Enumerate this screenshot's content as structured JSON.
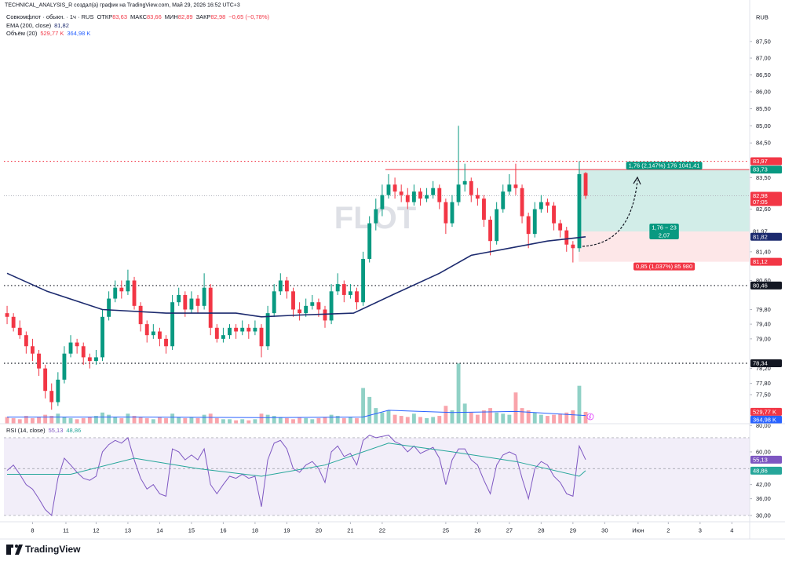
{
  "header": "TECHNICAL_ANALYSIS_R создал(а) график на TradingView.com, Май 29, 2026 16:52 UTC+3",
  "logo": "TradingView",
  "chart_data": {
    "type": "candlestick",
    "title": "Совкомфлот · обыкн. · 1ч · RUS",
    "ohlc_legend": [
      {
        "name": "ОТКР",
        "value": "83,63"
      },
      {
        "name": "МАКС",
        "value": "83,66"
      },
      {
        "name": "МИН",
        "value": "82,89"
      },
      {
        "name": "ЗАКР",
        "value": "82,98"
      }
    ],
    "change": "−0,65 (−0,78%)",
    "currency": "RUB",
    "watermark": "FLOT",
    "log_scale": true,
    "up_color": "#089981",
    "down_color": "#f23645",
    "x": [
      0,
      1,
      2,
      3,
      4,
      5,
      6,
      7,
      8,
      9,
      10,
      11,
      12,
      13,
      14,
      15,
      16,
      17,
      18,
      19,
      20,
      21,
      22,
      23,
      24,
      25,
      26,
      27,
      28,
      29,
      30,
      31,
      32,
      33,
      34,
      35,
      36,
      37,
      38,
      39,
      40,
      41,
      42,
      43,
      44,
      45,
      46,
      47,
      48,
      49,
      50,
      51,
      52,
      53,
      54,
      55,
      56,
      57,
      58,
      59,
      60,
      61,
      62,
      63,
      64,
      65,
      66,
      67,
      68,
      69,
      70,
      71,
      72,
      73,
      74,
      75,
      76,
      77,
      78,
      79,
      80,
      81,
      82,
      83,
      84,
      85,
      86,
      87,
      88,
      89,
      90,
      91
    ],
    "candles": [
      [
        79.7,
        79.9,
        79.4,
        79.6
      ],
      [
        79.6,
        79.7,
        79.2,
        79.3
      ],
      [
        79.3,
        79.5,
        79.0,
        79.1
      ],
      [
        79.1,
        79.2,
        78.6,
        78.8
      ],
      [
        78.8,
        79.0,
        78.4,
        78.6
      ],
      [
        78.6,
        78.7,
        78.0,
        78.2
      ],
      [
        78.2,
        78.3,
        77.4,
        77.6
      ],
      [
        77.6,
        77.8,
        77.1,
        77.3
      ],
      [
        77.3,
        78.1,
        77.2,
        77.9
      ],
      [
        77.9,
        78.8,
        77.8,
        78.6
      ],
      [
        78.6,
        79.1,
        78.5,
        78.9
      ],
      [
        78.9,
        79.0,
        78.6,
        78.8
      ],
      [
        78.8,
        78.9,
        78.3,
        78.5
      ],
      [
        78.5,
        78.6,
        78.2,
        78.4
      ],
      [
        78.4,
        78.7,
        78.3,
        78.5
      ],
      [
        78.5,
        79.8,
        78.4,
        79.6
      ],
      [
        79.6,
        80.3,
        79.5,
        80.1
      ],
      [
        80.1,
        80.6,
        80.0,
        80.4
      ],
      [
        80.4,
        80.6,
        80.1,
        80.3
      ],
      [
        80.3,
        80.9,
        80.2,
        80.6
      ],
      [
        80.6,
        80.7,
        79.8,
        79.9
      ],
      [
        79.9,
        80.0,
        79.2,
        79.4
      ],
      [
        79.4,
        79.5,
        78.9,
        79.1
      ],
      [
        79.1,
        79.4,
        79.0,
        79.2
      ],
      [
        79.2,
        79.3,
        78.8,
        79.0
      ],
      [
        79.0,
        79.1,
        78.6,
        78.8
      ],
      [
        78.8,
        80.2,
        78.7,
        80.0
      ],
      [
        80.0,
        80.4,
        79.9,
        80.2
      ],
      [
        80.2,
        80.3,
        79.6,
        79.8
      ],
      [
        79.8,
        80.3,
        79.7,
        80.1
      ],
      [
        80.1,
        80.2,
        79.7,
        79.9
      ],
      [
        79.9,
        80.8,
        79.8,
        80.4
      ],
      [
        80.4,
        80.5,
        79.1,
        79.3
      ],
      [
        79.3,
        79.4,
        78.9,
        79.0
      ],
      [
        79.0,
        79.3,
        78.9,
        79.1
      ],
      [
        79.1,
        79.4,
        79.0,
        79.3
      ],
      [
        79.3,
        79.4,
        79.0,
        79.2
      ],
      [
        79.2,
        79.5,
        79.1,
        79.3
      ],
      [
        79.3,
        79.4,
        79.0,
        79.2
      ],
      [
        79.2,
        79.5,
        79.1,
        79.3
      ],
      [
        79.3,
        79.4,
        78.5,
        78.8
      ],
      [
        78.8,
        79.9,
        78.7,
        79.7
      ],
      [
        79.7,
        80.5,
        79.6,
        80.3
      ],
      [
        80.3,
        80.8,
        80.2,
        80.6
      ],
      [
        80.6,
        80.7,
        80.1,
        80.3
      ],
      [
        80.3,
        80.4,
        79.6,
        79.8
      ],
      [
        79.8,
        80.0,
        79.5,
        79.7
      ],
      [
        79.7,
        80.1,
        79.6,
        79.9
      ],
      [
        79.9,
        80.2,
        79.8,
        80.0
      ],
      [
        80.0,
        80.1,
        79.6,
        79.8
      ],
      [
        79.8,
        79.9,
        79.3,
        79.5
      ],
      [
        79.5,
        80.5,
        79.4,
        80.3
      ],
      [
        80.3,
        80.8,
        80.2,
        80.5
      ],
      [
        80.5,
        80.6,
        80.0,
        80.2
      ],
      [
        80.2,
        80.5,
        80.1,
        80.3
      ],
      [
        80.3,
        80.4,
        79.8,
        80.0
      ],
      [
        80.0,
        81.4,
        79.9,
        81.2
      ],
      [
        81.2,
        82.4,
        81.1,
        82.2
      ],
      [
        82.2,
        82.9,
        82.0,
        82.6
      ],
      [
        82.6,
        83.3,
        82.4,
        83.0
      ],
      [
        83.0,
        83.6,
        82.9,
        83.3
      ],
      [
        83.3,
        83.5,
        82.9,
        83.1
      ],
      [
        83.1,
        83.3,
        82.8,
        83.0
      ],
      [
        83.0,
        83.2,
        82.6,
        82.8
      ],
      [
        82.8,
        83.3,
        82.7,
        83.1
      ],
      [
        83.1,
        83.2,
        82.7,
        82.9
      ],
      [
        82.9,
        83.2,
        82.8,
        83.0
      ],
      [
        83.0,
        83.4,
        82.9,
        83.2
      ],
      [
        83.2,
        83.3,
        82.6,
        82.8
      ],
      [
        82.8,
        82.9,
        81.9,
        82.2
      ],
      [
        82.2,
        83.0,
        82.1,
        82.8
      ],
      [
        82.8,
        85.0,
        82.7,
        83.3
      ],
      [
        83.3,
        83.9,
        83.1,
        83.4
      ],
      [
        83.4,
        83.5,
        82.8,
        83.0
      ],
      [
        83.0,
        83.2,
        82.7,
        82.9
      ],
      [
        82.9,
        83.0,
        82.1,
        82.3
      ],
      [
        82.3,
        82.4,
        81.3,
        81.7
      ],
      [
        81.7,
        82.8,
        81.6,
        82.6
      ],
      [
        82.6,
        83.3,
        82.5,
        83.1
      ],
      [
        83.1,
        83.6,
        83.0,
        83.3
      ],
      [
        83.3,
        83.9,
        83.0,
        83.2
      ],
      [
        83.2,
        83.3,
        82.2,
        82.4
      ],
      [
        82.4,
        82.5,
        81.5,
        81.9
      ],
      [
        81.9,
        82.8,
        81.8,
        82.6
      ],
      [
        82.6,
        83.0,
        82.5,
        82.8
      ],
      [
        82.8,
        82.9,
        82.5,
        82.7
      ],
      [
        82.7,
        82.8,
        82.0,
        82.2
      ],
      [
        82.2,
        82.3,
        81.8,
        82.0
      ],
      [
        82.0,
        82.1,
        81.4,
        81.6
      ],
      [
        81.6,
        81.7,
        81.1,
        81.5
      ],
      [
        81.5,
        83.97,
        81.4,
        83.6
      ],
      [
        83.63,
        83.66,
        82.89,
        82.98
      ]
    ],
    "xlim": [
      -0.5,
      116.8
    ],
    "xticks": [
      {
        "value": 4,
        "label": "8"
      },
      {
        "value": 9.25,
        "label": "11"
      },
      {
        "value": 14,
        "label": "12"
      },
      {
        "value": 19,
        "label": "13"
      },
      {
        "value": 24,
        "label": "14"
      },
      {
        "value": 29,
        "label": "15"
      },
      {
        "value": 34,
        "label": "16"
      },
      {
        "value": 39,
        "label": "18"
      },
      {
        "value": 44,
        "label": "19"
      },
      {
        "value": 49,
        "label": "20"
      },
      {
        "value": 54,
        "label": "21"
      },
      {
        "value": 59,
        "label": "22"
      },
      {
        "value": 69,
        "label": "25"
      },
      {
        "value": 74,
        "label": "26"
      },
      {
        "value": 79,
        "label": "27"
      },
      {
        "value": 84,
        "label": "28"
      },
      {
        "value": 89,
        "label": "29"
      },
      {
        "value": 94,
        "label": "30"
      },
      {
        "value": 99.25,
        "label": "Июн"
      },
      {
        "value": 104,
        "label": "2"
      },
      {
        "value": 109,
        "label": "3"
      },
      {
        "value": 114,
        "label": "4"
      }
    ],
    "ylim": [
      76.73,
      88.42
    ],
    "yticks": [
      {
        "value": 87.5,
        "label": "87,50"
      },
      {
        "value": 87,
        "label": "87,00"
      },
      {
        "value": 86.5,
        "label": "86,50"
      },
      {
        "value": 86,
        "label": "86,00"
      },
      {
        "value": 85.5,
        "label": "85,50"
      },
      {
        "value": 85,
        "label": "85,00"
      },
      {
        "value": 84.5,
        "label": "84,50"
      },
      {
        "value": 83.5,
        "label": "83,50"
      },
      {
        "value": 82.6,
        "label": "82,60"
      },
      {
        "value": 81.4,
        "label": "81,40"
      },
      {
        "value": 80.6,
        "label": "80,60"
      },
      {
        "value": 79.8,
        "label": "79,80"
      },
      {
        "value": 79.4,
        "label": "79,40"
      },
      {
        "value": 79,
        "label": "79,00"
      },
      {
        "value": 78.2,
        "label": "78,20"
      },
      {
        "value": 77.8,
        "label": "77,80"
      },
      {
        "value": 77.5,
        "label": "77,50"
      }
    ],
    "last_price": {
      "value": 82.98,
      "label": "82,98",
      "countdown": "07:05",
      "color": "#f23645"
    },
    "ema": {
      "name": "EMA (200, close)",
      "color": "#1c2a6e",
      "x": [
        0,
        6.3,
        15,
        25,
        36,
        40,
        46,
        54.5,
        60.6,
        68,
        73,
        79,
        85,
        91
      ],
      "values": [
        80.8,
        80.3,
        79.8,
        79.7,
        79.7,
        79.6,
        79.65,
        79.7,
        80.2,
        80.8,
        81.3,
        81.5,
        81.7,
        81.82
      ],
      "value_label": "81,82"
    },
    "volume": {
      "name": "Объём (20)",
      "ylim": [
        0,
        18500
      ],
      "value_label": "529,77 K",
      "values": [
        300,
        250,
        200,
        350,
        250,
        300,
        400,
        350,
        450,
        300,
        250,
        200,
        250,
        300,
        350,
        500,
        400,
        300,
        250,
        450,
        350,
        300,
        250,
        200,
        300,
        250,
        450,
        300,
        250,
        300,
        250,
        400,
        450,
        250,
        200,
        200,
        150,
        200,
        150,
        200,
        450,
        400,
        350,
        300,
        250,
        200,
        300,
        250,
        200,
        250,
        300,
        400,
        350,
        250,
        300,
        250,
        1600,
        1200,
        700,
        500,
        600,
        400,
        350,
        300,
        450,
        300,
        250,
        300,
        350,
        800,
        600,
        2700,
        900,
        500,
        400,
        600,
        700,
        500,
        450,
        400,
        1400,
        700,
        600,
        500,
        400,
        350,
        400,
        450,
        500,
        600,
        1700,
        529.77
      ],
      "ma": {
        "color": "#2962ff",
        "x": [
          0,
          20,
          40,
          56,
          60,
          70,
          80,
          91
        ],
        "values": [
          300,
          300,
          270,
          300,
          600,
          500,
          550,
          364.98
        ],
        "value_label": "364,98 K"
      }
    },
    "levels": [
      {
        "value": 83.97,
        "label": "83,97",
        "color": "#f23645"
      },
      {
        "value": 80.46,
        "label": "80,46",
        "color": "#131722"
      },
      {
        "value": 78.34,
        "label": "78,34",
        "color": "#131722"
      }
    ],
    "resistance": {
      "value": 83.73,
      "x_start": 59.5,
      "color": "#f23645"
    },
    "position": {
      "x_start": 89.9,
      "target": {
        "value": 83.73,
        "label": "83,73",
        "text": "1,76 (2,147%) 176 1041,41",
        "color": "#089981"
      },
      "entry": {
        "value": 81.97,
        "label": "81,97",
        "text": [
          "1,76 − 23",
          "2,07"
        ]
      },
      "stop": {
        "value": 81.12,
        "label": "81,12",
        "text": "0,85 (1,037%) 85 980",
        "color": "#f23645"
      }
    },
    "rsi": {
      "name": "RSI (14, close)",
      "color": "#7e57c2",
      "value_label": "55,13",
      "log_scale": true,
      "ylim": [
        28.0,
        81.6
      ],
      "yticks": [
        {
          "value": 80,
          "label": "80,00"
        },
        {
          "value": 60,
          "label": "60,00"
        },
        {
          "value": 42,
          "label": "42,00"
        },
        {
          "value": 36,
          "label": "36,00"
        },
        {
          "value": 30,
          "label": "30,00"
        }
      ],
      "band": [
        70,
        30
      ],
      "levels": [
        70,
        50,
        30
      ],
      "values": [
        49,
        52,
        47,
        42,
        40,
        36,
        32,
        30,
        45,
        56,
        52,
        48,
        45,
        44,
        46,
        60,
        65,
        68,
        66,
        70,
        55,
        45,
        40,
        42,
        38,
        37,
        62,
        60,
        55,
        58,
        55,
        62,
        42,
        38,
        42,
        46,
        45,
        47,
        45,
        46,
        33,
        55,
        66,
        68,
        62,
        50,
        48,
        52,
        54,
        50,
        43,
        60,
        64,
        57,
        59,
        52,
        68,
        72,
        70,
        71,
        72,
        67,
        65,
        60,
        64,
        59,
        61,
        63,
        56,
        42,
        55,
        62,
        62,
        55,
        52,
        44,
        38,
        52,
        58,
        60,
        58,
        45,
        36,
        50,
        54,
        52,
        46,
        43,
        38,
        37,
        64,
        55.13
      ],
      "ma": {
        "color": "#26a69a",
        "x": [
          0,
          10,
          20,
          30,
          40,
          50,
          60,
          70,
          80,
          90,
          91
        ],
        "values": [
          47,
          47,
          56,
          50,
          46,
          52,
          66,
          60,
          54,
          46,
          48.86
        ],
        "value_label": "48,86"
      }
    }
  }
}
